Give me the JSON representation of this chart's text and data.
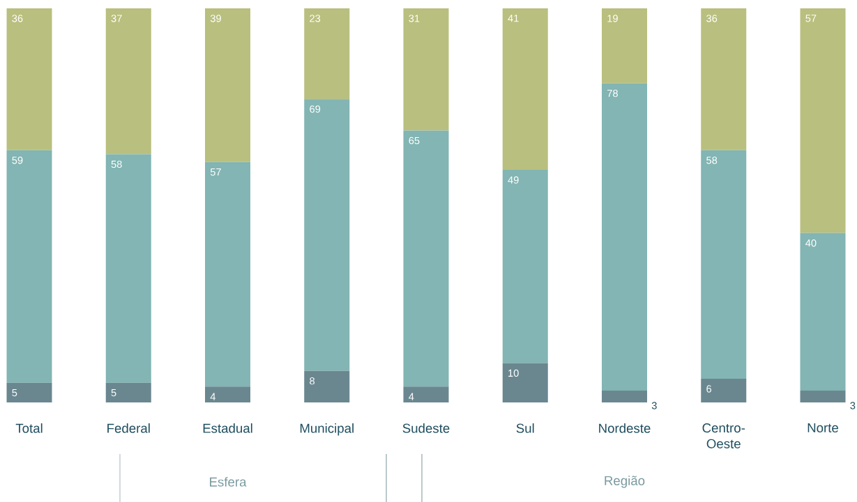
{
  "chart_data": {
    "type": "bar",
    "stacked": true,
    "data_labels": true,
    "categories": [
      "Total",
      "Federal",
      "Estadual",
      "Municipal",
      "Sudeste",
      "Sul",
      "Nordeste",
      "Centro-Oeste",
      "Norte"
    ],
    "series": [
      {
        "color": "#6a8790",
        "values": [
          5,
          5,
          4,
          8,
          4,
          10,
          3,
          6,
          3
        ]
      },
      {
        "color": "#82b5b3",
        "values": [
          59,
          58,
          57,
          69,
          65,
          49,
          78,
          58,
          40
        ]
      },
      {
        "color": "#b9bf7e",
        "values": [
          36,
          37,
          39,
          23,
          31,
          41,
          19,
          36,
          57
        ]
      }
    ],
    "annotations": [
      "Esfera",
      "Região"
    ]
  }
}
